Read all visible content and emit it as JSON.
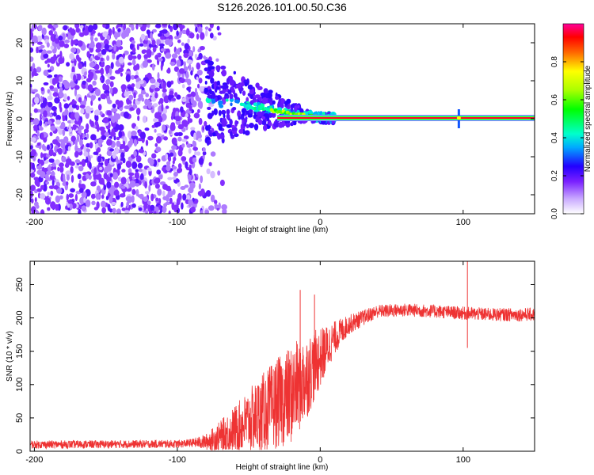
{
  "page": {
    "title": "S126.2026.101.00.50.C36"
  },
  "chart_data": [
    {
      "type": "heatmap",
      "title": "S126.2026.101.00.50.C36",
      "xlabel": "Height of straight line (km)",
      "ylabel": "Frequency (Hz)",
      "xlim": [
        -203,
        150
      ],
      "ylim": [
        -25,
        25
      ],
      "xticks": [
        -200,
        -100,
        0,
        100
      ],
      "xtick_labels": [
        "-200",
        "-100",
        "0",
        "100"
      ],
      "yticks": [
        20,
        10,
        0,
        -10,
        -20
      ],
      "ytick_labels": [
        "20",
        "10",
        "0",
        "-10",
        "-20"
      ],
      "colorbar": {
        "label": "Normalized spectral amplitude",
        "range": [
          0.0,
          1.0
        ],
        "ticks": [
          0.0,
          0.2,
          0.4,
          0.6,
          0.8
        ],
        "tick_labels": [
          "0.0",
          "0.2",
          "0.4",
          "0.6",
          "0.8"
        ]
      },
      "features": {
        "noise_region_x": [
          -203,
          -70
        ],
        "noise_amplitude": 0.15,
        "transition_region_x": [
          -70,
          10
        ],
        "carrier_line": {
          "x": [
            -30,
            150
          ],
          "frequency": 0.2,
          "amplitude": 0.95
        },
        "carrier_path": [
          [
            -60,
            4
          ],
          [
            -50,
            3.2
          ],
          [
            -40,
            2.5
          ],
          [
            -30,
            2.0
          ],
          [
            -20,
            1.3
          ],
          [
            -10,
            0.8
          ],
          [
            0,
            0.3
          ],
          [
            10,
            0.2
          ]
        ],
        "spike_x": 97
      }
    },
    {
      "type": "line",
      "xlabel": "Height of straight line (km)",
      "ylabel": "SNR (10 * v/v)",
      "xlim": [
        -203,
        150
      ],
      "ylim": [
        0,
        285
      ],
      "xticks": [
        -200,
        -100,
        0,
        100
      ],
      "xtick_labels": [
        "-200",
        "-100",
        "0",
        "100"
      ],
      "yticks": [
        0,
        50,
        100,
        150,
        200,
        250
      ],
      "ytick_labels": [
        "0",
        "50",
        "100",
        "150",
        "200",
        "250"
      ],
      "series": [
        {
          "name": "SNR",
          "color": "#ee3333",
          "trend_x": [
            -203,
            -100,
            -80,
            -70,
            -60,
            -50,
            -40,
            -30,
            -20,
            -10,
            0,
            10,
            20,
            30,
            40,
            60,
            80,
            100,
            120,
            150
          ],
          "trend_y": [
            10,
            11,
            14,
            22,
            33,
            45,
            58,
            72,
            85,
            110,
            140,
            170,
            190,
            200,
            210,
            212,
            210,
            207,
            205,
            205
          ],
          "noise_x": [
            -203,
            -90,
            -80,
            -60,
            -40,
            -20,
            -10,
            0,
            10,
            20,
            30,
            40,
            150
          ],
          "noise_amp": [
            6,
            6,
            12,
            35,
            60,
            75,
            65,
            45,
            25,
            15,
            12,
            10,
            10
          ],
          "spikes": [
            {
              "x": -14,
              "y": 242
            },
            {
              "x": -4,
              "y": 235
            },
            {
              "x": 103,
              "y": 285
            },
            {
              "x": 103,
              "y": 155
            }
          ]
        }
      ]
    }
  ]
}
